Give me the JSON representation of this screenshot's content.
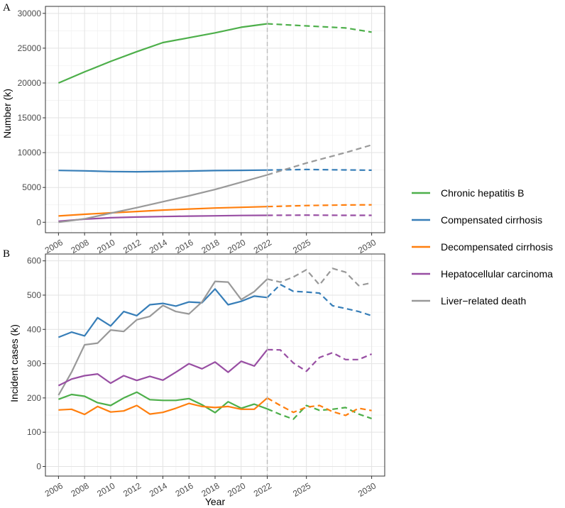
{
  "chart_data": [
    {
      "type": "line",
      "panel_label": "A",
      "ylabel": "Number (k)",
      "xlabel": "",
      "xlim": [
        2005,
        2031
      ],
      "ylim": [
        -1500,
        31000
      ],
      "x_ticks": [
        2006,
        2008,
        2010,
        2012,
        2014,
        2016,
        2018,
        2020,
        2022,
        2025,
        2030
      ],
      "y_ticks": [
        0,
        5000,
        10000,
        15000,
        20000,
        25000,
        30000
      ],
      "projection_start": 2022,
      "series": [
        {
          "name": "Chronic hepatitis B",
          "color": "#4daf4a",
          "x": [
            2006,
            2008,
            2010,
            2012,
            2014,
            2016,
            2018,
            2020,
            2022,
            2025,
            2028,
            2030
          ],
          "y": [
            20000,
            21600,
            23100,
            24500,
            25800,
            26500,
            27200,
            28000,
            28500,
            28200,
            27900,
            27300
          ]
        },
        {
          "name": "Compensated cirrhosis",
          "color": "#377eb8",
          "x": [
            2006,
            2008,
            2010,
            2012,
            2014,
            2016,
            2018,
            2020,
            2022,
            2025,
            2028,
            2030
          ],
          "y": [
            7450,
            7380,
            7280,
            7250,
            7300,
            7350,
            7420,
            7460,
            7500,
            7580,
            7520,
            7480
          ]
        },
        {
          "name": "Decompensated cirrhosis",
          "color": "#ff7f0e",
          "x": [
            2006,
            2008,
            2010,
            2012,
            2014,
            2016,
            2018,
            2020,
            2022,
            2025,
            2028,
            2030
          ],
          "y": [
            900,
            1150,
            1350,
            1550,
            1750,
            1900,
            2050,
            2150,
            2250,
            2400,
            2480,
            2500
          ]
        },
        {
          "name": "Hepatocellular carcinoma",
          "color": "#984ea3",
          "x": [
            2006,
            2008,
            2010,
            2012,
            2014,
            2016,
            2018,
            2020,
            2022,
            2025,
            2028,
            2030
          ],
          "y": [
            150,
            450,
            650,
            750,
            820,
            880,
            920,
            980,
            1000,
            1030,
            1000,
            1000
          ]
        },
        {
          "name": "Liver−related death",
          "color": "#999999",
          "x": [
            2006,
            2008,
            2010,
            2012,
            2014,
            2016,
            2018,
            2020,
            2022,
            2025,
            2028,
            2030
          ],
          "y": [
            0,
            500,
            1300,
            2100,
            2950,
            3800,
            4700,
            5750,
            6800,
            8500,
            10000,
            11100
          ]
        }
      ]
    },
    {
      "type": "line",
      "panel_label": "B",
      "ylabel": "Incident cases (k)",
      "xlabel": "Year",
      "xlim": [
        2005,
        2031
      ],
      "ylim": [
        -28,
        620
      ],
      "x_ticks": [
        2006,
        2008,
        2010,
        2012,
        2014,
        2016,
        2018,
        2020,
        2022,
        2025,
        2030
      ],
      "y_ticks": [
        0,
        100,
        200,
        300,
        400,
        500,
        600
      ],
      "projection_start": 2022,
      "series": [
        {
          "name": "Compensated cirrhosis",
          "color": "#377eb8",
          "x": [
            2006,
            2007,
            2008,
            2009,
            2010,
            2011,
            2012,
            2013,
            2014,
            2015,
            2016,
            2017,
            2018,
            2019,
            2020,
            2021,
            2022,
            2023,
            2024,
            2025,
            2026,
            2027,
            2028,
            2029,
            2030
          ],
          "y": [
            377,
            392,
            381,
            434,
            410,
            452,
            440,
            472,
            476,
            468,
            480,
            478,
            518,
            472,
            482,
            497,
            493,
            531,
            511,
            509,
            506,
            469,
            461,
            452,
            440
          ]
        },
        {
          "name": "Liver−related death",
          "color": "#999999",
          "x": [
            2006,
            2007,
            2008,
            2009,
            2010,
            2011,
            2012,
            2013,
            2014,
            2015,
            2016,
            2017,
            2018,
            2019,
            2020,
            2021,
            2022,
            2023,
            2024,
            2025,
            2026,
            2027,
            2028,
            2029,
            2030
          ],
          "y": [
            208,
            275,
            355,
            360,
            398,
            394,
            428,
            438,
            470,
            452,
            445,
            480,
            540,
            538,
            487,
            510,
            547,
            538,
            553,
            574,
            530,
            578,
            567,
            528,
            536
          ]
        },
        {
          "name": "Hepatocellular carcinoma",
          "color": "#984ea3",
          "x": [
            2006,
            2007,
            2008,
            2009,
            2010,
            2011,
            2012,
            2013,
            2014,
            2015,
            2016,
            2017,
            2018,
            2019,
            2020,
            2021,
            2022,
            2023,
            2024,
            2025,
            2026,
            2027,
            2028,
            2029,
            2030
          ],
          "y": [
            236,
            255,
            265,
            270,
            243,
            265,
            251,
            263,
            252,
            275,
            300,
            285,
            305,
            275,
            307,
            293,
            341,
            340,
            302,
            278,
            318,
            332,
            312,
            312,
            328
          ]
        },
        {
          "name": "Chronic hepatitis B",
          "color": "#4daf4a",
          "x": [
            2006,
            2007,
            2008,
            2009,
            2010,
            2011,
            2012,
            2013,
            2014,
            2015,
            2016,
            2017,
            2018,
            2019,
            2020,
            2021,
            2022,
            2023,
            2024,
            2025,
            2026,
            2027,
            2028,
            2029,
            2030
          ],
          "y": [
            196,
            210,
            205,
            186,
            178,
            200,
            217,
            195,
            193,
            193,
            198,
            180,
            157,
            189,
            170,
            182,
            168,
            152,
            138,
            178,
            164,
            167,
            172,
            153,
            140
          ]
        },
        {
          "name": "Decompensated cirrhosis",
          "color": "#ff7f0e",
          "x": [
            2006,
            2007,
            2008,
            2009,
            2010,
            2011,
            2012,
            2013,
            2014,
            2015,
            2016,
            2017,
            2018,
            2019,
            2020,
            2021,
            2022,
            2023,
            2024,
            2025,
            2026,
            2027,
            2028,
            2029,
            2030
          ],
          "y": [
            165,
            167,
            152,
            175,
            159,
            162,
            178,
            153,
            158,
            170,
            184,
            175,
            172,
            175,
            167,
            167,
            200,
            178,
            158,
            173,
            178,
            160,
            149,
            170,
            163
          ]
        }
      ]
    }
  ],
  "legend": {
    "position": "right",
    "items": [
      {
        "label": "Chronic hepatitis B",
        "color": "#4daf4a"
      },
      {
        "label": "Compensated cirrhosis",
        "color": "#377eb8"
      },
      {
        "label": "Decompensated cirrhosis",
        "color": "#ff7f0e"
      },
      {
        "label": "Hepatocellular carcinoma",
        "color": "#984ea3"
      },
      {
        "label": "Liver−related death",
        "color": "#999999"
      }
    ]
  }
}
